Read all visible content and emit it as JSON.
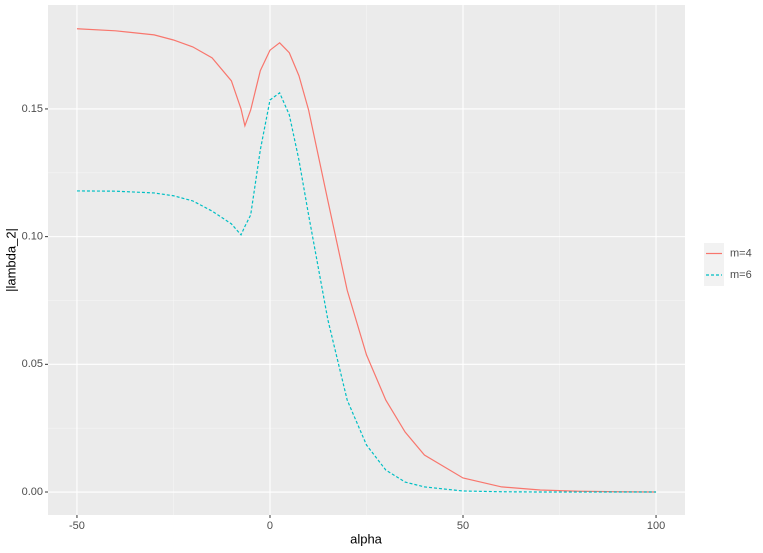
{
  "chart_data": {
    "type": "line",
    "x_label": "alpha",
    "y_label": "|lambda_2|",
    "x": [
      -50,
      -40,
      -30,
      -25,
      -20,
      -15,
      -10,
      -7.5,
      -6.5,
      -5,
      -2.5,
      0,
      2.5,
      5,
      7.5,
      10,
      15,
      20,
      25,
      30,
      35,
      40,
      50,
      60,
      70,
      80,
      90,
      100
    ],
    "series": [
      {
        "name": "m=4",
        "color": "#f8766d",
        "dash": "solid",
        "values": [
          0.1814,
          0.1806,
          0.179,
          0.177,
          0.1743,
          0.17,
          0.161,
          0.15,
          0.1434,
          0.1496,
          0.165,
          0.173,
          0.1759,
          0.172,
          0.163,
          0.1496,
          0.114,
          0.079,
          0.0537,
          0.036,
          0.0235,
          0.0145,
          0.0055,
          0.002,
          0.0008,
          0.0003,
          0.0001,
          0
        ]
      },
      {
        "name": "m=6",
        "color": "#00bfc4",
        "dash": "dashed",
        "values": [
          0.1179,
          0.1178,
          0.1171,
          0.116,
          0.114,
          0.11,
          0.105,
          0.1007,
          0.104,
          0.1085,
          0.134,
          0.1535,
          0.1563,
          0.1477,
          0.13,
          0.1085,
          0.0674,
          0.036,
          0.0184,
          0.0086,
          0.0039,
          0.002,
          0.0004,
          0.0001,
          0,
          0,
          0,
          0
        ]
      }
    ],
    "xlim": [
      -57.5,
      107.5
    ],
    "xticks": [
      -50,
      0,
      50,
      100
    ],
    "ylim": [
      -0.009,
      0.1907
    ],
    "yticks": [
      {
        "value": 0,
        "label": "0.00"
      },
      {
        "value": 0.05,
        "label": "0.05"
      },
      {
        "value": 0.1,
        "label": "0.10"
      },
      {
        "value": 0.15,
        "label": "0.15"
      }
    ],
    "grid": true,
    "legend": "right"
  }
}
